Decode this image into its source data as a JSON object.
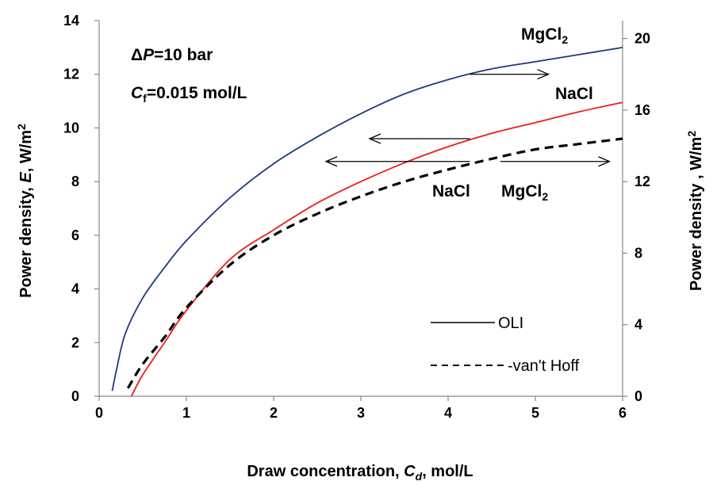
{
  "chart_data": {
    "type": "line",
    "xlabel": {
      "pre": "Draw concentration, ",
      "var": "C",
      "sub": "d",
      "post": ", mol/L"
    },
    "ylabel_left": {
      "pre": "Power density, ",
      "var": "E",
      "post": ", W/m",
      "sup": "2"
    },
    "ylabel_right": {
      "pre": "Power density , W/m",
      "sup": "2"
    },
    "xlim": [
      0,
      6
    ],
    "ylim_left": [
      0,
      14
    ],
    "ylim_right": [
      0,
      21
    ],
    "x_ticks": [
      "0",
      "1",
      "2",
      "3",
      "4",
      "5",
      "6"
    ],
    "y_left_ticks": [
      "0",
      "2",
      "4",
      "6",
      "8",
      "10",
      "12",
      "14"
    ],
    "y_right_ticks": [
      "0",
      "4",
      "8",
      "12",
      "16",
      "20"
    ],
    "grid": false,
    "series": [
      {
        "label": "MgCl2",
        "axis": "right",
        "style": "solid",
        "color": "#1f3a7a",
        "points": [
          [
            0.15,
            0.3
          ],
          [
            0.2,
            1.5
          ],
          [
            0.3,
            3.5
          ],
          [
            0.5,
            5.5
          ],
          [
            0.75,
            7.2
          ],
          [
            1.0,
            8.7
          ],
          [
            1.5,
            11.1
          ],
          [
            2.0,
            13.0
          ],
          [
            2.5,
            14.5
          ],
          [
            3.0,
            15.8
          ],
          [
            3.5,
            16.9
          ],
          [
            4.0,
            17.7
          ],
          [
            4.5,
            18.3
          ],
          [
            5.0,
            18.7
          ],
          [
            5.5,
            19.1
          ],
          [
            6.0,
            19.5
          ]
        ]
      },
      {
        "label": "NaCl",
        "axis": "left",
        "style": "solid",
        "color": "#ee1c1c",
        "points": [
          [
            0.37,
            0.0
          ],
          [
            0.5,
            0.8
          ],
          [
            0.75,
            2.0
          ],
          [
            1.0,
            3.2
          ],
          [
            1.5,
            5.1
          ],
          [
            2.0,
            6.2
          ],
          [
            2.5,
            7.2
          ],
          [
            3.0,
            8.0
          ],
          [
            3.5,
            8.7
          ],
          [
            4.0,
            9.3
          ],
          [
            4.5,
            9.8
          ],
          [
            5.0,
            10.2
          ],
          [
            5.5,
            10.6
          ],
          [
            6.0,
            10.95
          ]
        ]
      },
      {
        "label": "NaCl / MgCl2 van't Hoff",
        "axis": "left",
        "style": "dashed",
        "color": "#000000",
        "points": [
          [
            0.33,
            0.3
          ],
          [
            0.5,
            1.2
          ],
          [
            0.75,
            2.2
          ],
          [
            1.0,
            3.3
          ],
          [
            1.5,
            4.9
          ],
          [
            2.0,
            6.0
          ],
          [
            2.5,
            6.8
          ],
          [
            3.0,
            7.45
          ],
          [
            3.5,
            8.0
          ],
          [
            4.0,
            8.45
          ],
          [
            4.5,
            8.85
          ],
          [
            5.0,
            9.2
          ],
          [
            5.5,
            9.4
          ],
          [
            6.0,
            9.6
          ]
        ]
      }
    ],
    "annotations": {
      "dp": {
        "pre": "Δ",
        "var": "P",
        "post": "=10 bar"
      },
      "cf": {
        "var": "C",
        "sub": "f",
        "post": "=0.015 mol/L"
      },
      "mgcl2_top": {
        "base": "MgCl",
        "sub": "2"
      },
      "nacl_top": "NaCl",
      "nacl_mid": "NaCl",
      "mgcl2_mid": {
        "base": "MgCl",
        "sub": "2"
      }
    },
    "legend": {
      "position": "lower-right",
      "entries": [
        {
          "label": "OLI",
          "style": "solid"
        },
        {
          "label": "-van't Hoff",
          "style": "dashed"
        }
      ]
    }
  }
}
